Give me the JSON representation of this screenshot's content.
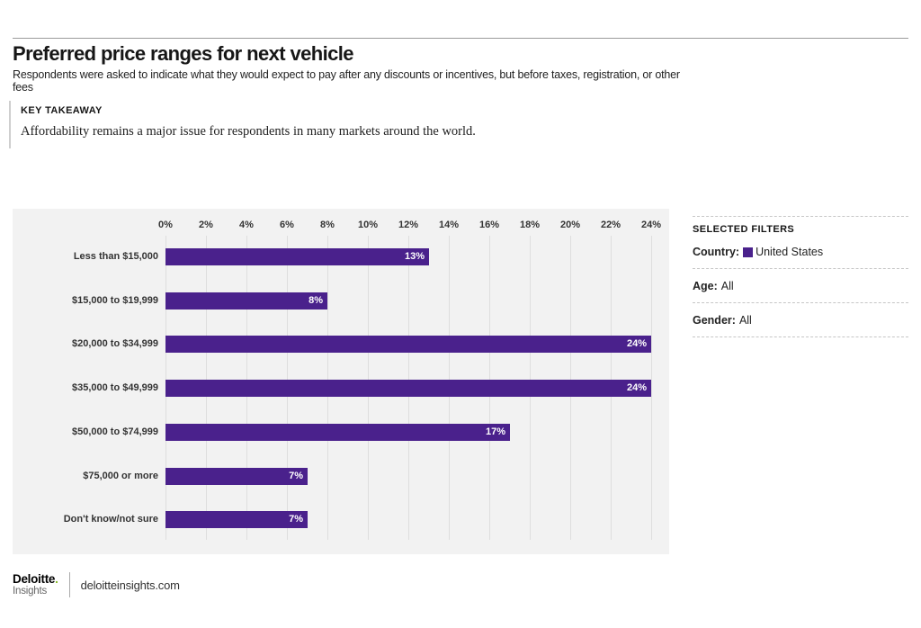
{
  "header": {
    "title": "Preferred price ranges for next vehicle",
    "subtitle": "Respondents were asked to indicate what they would expect to pay after any discounts or incentives, but before taxes, registration, or other fees"
  },
  "key_takeaway": {
    "label": "KEY TAKEAWAY",
    "text": "Affordability remains a major issue for respondents in many markets around the world."
  },
  "chart_data": {
    "type": "bar",
    "orientation": "horizontal",
    "categories": [
      "Less than $15,000",
      "$15,000 to $19,999",
      "$20,000 to $34,999",
      "$35,000 to $49,999",
      "$50,000 to $74,999",
      "$75,000 or more",
      "Don't know/not sure"
    ],
    "values": [
      13,
      8,
      24,
      24,
      17,
      7,
      7
    ],
    "value_labels": [
      "13%",
      "8%",
      "24%",
      "24%",
      "17%",
      "7%",
      "7%"
    ],
    "x_ticks": [
      "0%",
      "2%",
      "4%",
      "6%",
      "8%",
      "10%",
      "12%",
      "14%",
      "16%",
      "18%",
      "20%",
      "22%",
      "24%"
    ],
    "xlim": [
      0,
      24
    ],
    "grid": true,
    "legend": "none",
    "bar_color": "#4a218c",
    "panel_bg": "#f2f2f2"
  },
  "filters": {
    "heading": "SELECTED FILTERS",
    "items": [
      {
        "id": "country",
        "label": "Country:",
        "value": "United States",
        "swatch": "#4a218c"
      },
      {
        "id": "age",
        "label": "Age:",
        "value": "All"
      },
      {
        "id": "gender",
        "label": "Gender:",
        "value": "All"
      }
    ]
  },
  "footer": {
    "brand": "Deloitte",
    "brand_dot": ".",
    "brand_sub": "Insights",
    "site": "deloitteinsights.com"
  }
}
